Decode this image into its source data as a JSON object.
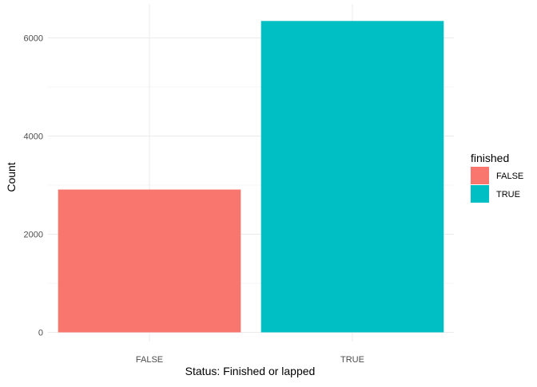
{
  "chart_data": {
    "type": "bar",
    "title": "",
    "xlabel": "Status: Finished or lapped",
    "ylabel": "Count",
    "categories": [
      "FALSE",
      "TRUE"
    ],
    "values": [
      2910,
      6345
    ],
    "ylim": [
      0,
      6700
    ],
    "yticks": [
      0,
      2000,
      4000,
      6000
    ],
    "ytick_labels": [
      "0",
      "2000",
      "4000",
      "6000"
    ],
    "grid": true,
    "legend": {
      "title": "finished",
      "placement": "right",
      "entries": [
        "FALSE",
        "TRUE"
      ]
    },
    "colors": [
      "#F8766D",
      "#00BFC4"
    ]
  },
  "theme": {
    "grid_major": "#EBEBEB",
    "grid_minor": "#F5F5F5",
    "text_color": "#4D4D4D",
    "title_color": "#000000"
  }
}
